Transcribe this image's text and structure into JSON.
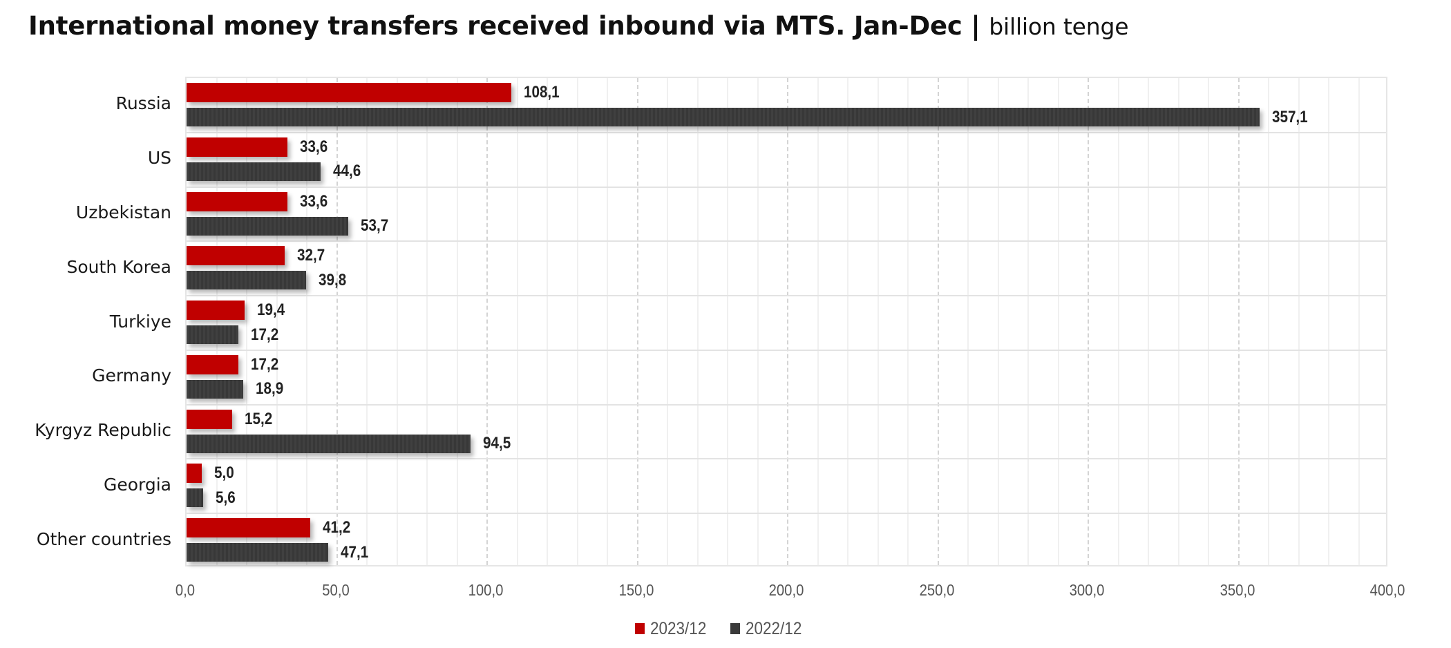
{
  "title": {
    "main": "International money transfers received inbound via MTS. Jan-Dec | ",
    "unit": "billion tenge"
  },
  "colors": {
    "series_2023": "#c00000",
    "series_2022": "#3a3a3a"
  },
  "legend": [
    {
      "label": "2023/12",
      "color": "#c00000",
      "icon": "square-swatch"
    },
    {
      "label": "2022/12",
      "color": "#3a3a3a",
      "icon": "square-swatch"
    }
  ],
  "x_axis": {
    "ticks": [
      "0,0",
      "50,0",
      "100,0",
      "150,0",
      "200,0",
      "250,0",
      "300,0",
      "350,0",
      "400,0"
    ]
  },
  "rows": [
    {
      "category": "Russia",
      "v2023": "108,1",
      "v2022": "357,1"
    },
    {
      "category": "US",
      "v2023": "33,6",
      "v2022": "44,6"
    },
    {
      "category": "Uzbekistan",
      "v2023": "33,6",
      "v2022": "53,7"
    },
    {
      "category": "South Korea",
      "v2023": "32,7",
      "v2022": "39,8"
    },
    {
      "category": "Turkiye",
      "v2023": "19,4",
      "v2022": "17,2"
    },
    {
      "category": "Germany",
      "v2023": "17,2",
      "v2022": "18,9"
    },
    {
      "category": "Kyrgyz Republic",
      "v2023": "15,2",
      "v2022": "94,5"
    },
    {
      "category": "Georgia",
      "v2023": "5,0",
      "v2022": "5,6"
    },
    {
      "category": "Other countries",
      "v2023": "41,2",
      "v2022": "47,1"
    }
  ],
  "chart_data": {
    "type": "bar",
    "orientation": "horizontal",
    "title": "International money transfers received inbound via MTS. Jan-Dec | billion tenge",
    "xlabel": "",
    "ylabel": "",
    "categories": [
      "Russia",
      "US",
      "Uzbekistan",
      "South Korea",
      "Turkiye",
      "Germany",
      "Kyrgyz Republic",
      "Georgia",
      "Other countries"
    ],
    "series": [
      {
        "name": "2023/12",
        "color": "#c00000",
        "values": [
          108.1,
          33.6,
          33.6,
          32.7,
          19.4,
          17.2,
          15.2,
          5.0,
          41.2
        ]
      },
      {
        "name": "2022/12",
        "color": "#3a3a3a",
        "values": [
          357.1,
          44.6,
          53.7,
          39.8,
          17.2,
          18.9,
          94.5,
          5.6,
          47.1
        ]
      }
    ],
    "xlim": [
      0,
      400
    ],
    "x_ticks": [
      0,
      50,
      100,
      150,
      200,
      250,
      300,
      350,
      400
    ],
    "tick_format": "decimal comma, one decimal",
    "grid": {
      "major_x": "dashed every 50",
      "minor_x": "solid every 10",
      "category_separators": true
    },
    "data_labels": true,
    "legend_position": "bottom-center"
  }
}
